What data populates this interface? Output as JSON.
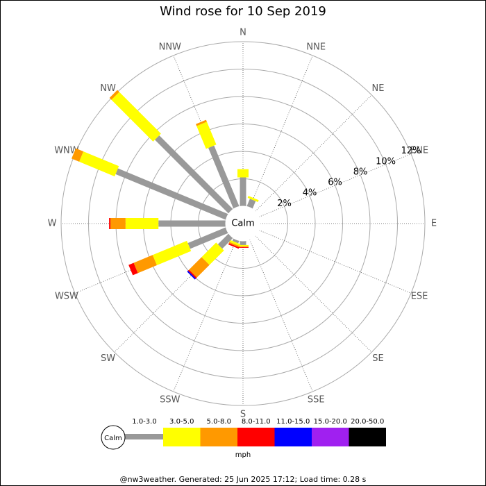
{
  "chart_data": {
    "type": "windrose",
    "title": "Wind rose for 10 Sep 2019",
    "directions": [
      "N",
      "NNE",
      "NE",
      "ENE",
      "E",
      "ESE",
      "SE",
      "SSE",
      "S",
      "SSW",
      "SW",
      "WSW",
      "W",
      "WNW",
      "NW",
      "NNW"
    ],
    "center_label": "Calm",
    "rlim": [
      0,
      12
    ],
    "rticks": [
      {
        "value": 2,
        "label": "2%"
      },
      {
        "value": 4,
        "label": "4%"
      },
      {
        "value": 6,
        "label": "6%"
      },
      {
        "value": 8,
        "label": "8%"
      },
      {
        "value": 10,
        "label": "10%"
      },
      {
        "value": 12,
        "label": "12%"
      }
    ],
    "series": [
      {
        "name": "1.0-3.0",
        "color": "#999999",
        "values": [
          2.1,
          0.6,
          0,
          0,
          0,
          0,
          0,
          0,
          0.3,
          0.2,
          1.1,
          3.0,
          4.9,
          8.7,
          7.6,
          4.8
        ]
      },
      {
        "name": "3.0-5.0",
        "color": "#ffff00",
        "values": [
          0.6,
          0.15,
          0,
          0,
          0,
          0,
          0,
          0,
          0.1,
          0.15,
          1.5,
          2.7,
          2.4,
          2.8,
          4.3,
          1.8
        ]
      },
      {
        "name": "5.0-8.0",
        "color": "#ff9900",
        "values": [
          0,
          0,
          0,
          0,
          0,
          0,
          0,
          0,
          0.05,
          0.1,
          1.3,
          1.5,
          1.1,
          0.6,
          0.2,
          0.15
        ]
      },
      {
        "name": "8.0-11.0",
        "color": "#ff0000",
        "values": [
          0,
          0,
          0,
          0,
          0,
          0,
          0,
          0,
          0.05,
          0.1,
          0.1,
          0.4,
          0.1,
          0,
          0,
          0
        ]
      },
      {
        "name": "11.0-15.0",
        "color": "#0000ff",
        "values": [
          0,
          0,
          0,
          0,
          0,
          0,
          0,
          0,
          0,
          0,
          0.1,
          0,
          0,
          0,
          0,
          0
        ]
      },
      {
        "name": "15.0-20.0",
        "color": "#a020f0",
        "values": [
          0,
          0,
          0,
          0,
          0,
          0,
          0,
          0,
          0,
          0,
          0,
          0,
          0,
          0,
          0,
          0
        ]
      },
      {
        "name": "20.0-50.0",
        "color": "#000000",
        "values": [
          0,
          0,
          0,
          0,
          0,
          0,
          0,
          0,
          0,
          0,
          0,
          0,
          0,
          0,
          0,
          0
        ]
      }
    ],
    "legend_unit": "mph",
    "footer": "@nw3weather. Generated: 25 Jun 2025 17:12; Load time: 0.28 s"
  }
}
